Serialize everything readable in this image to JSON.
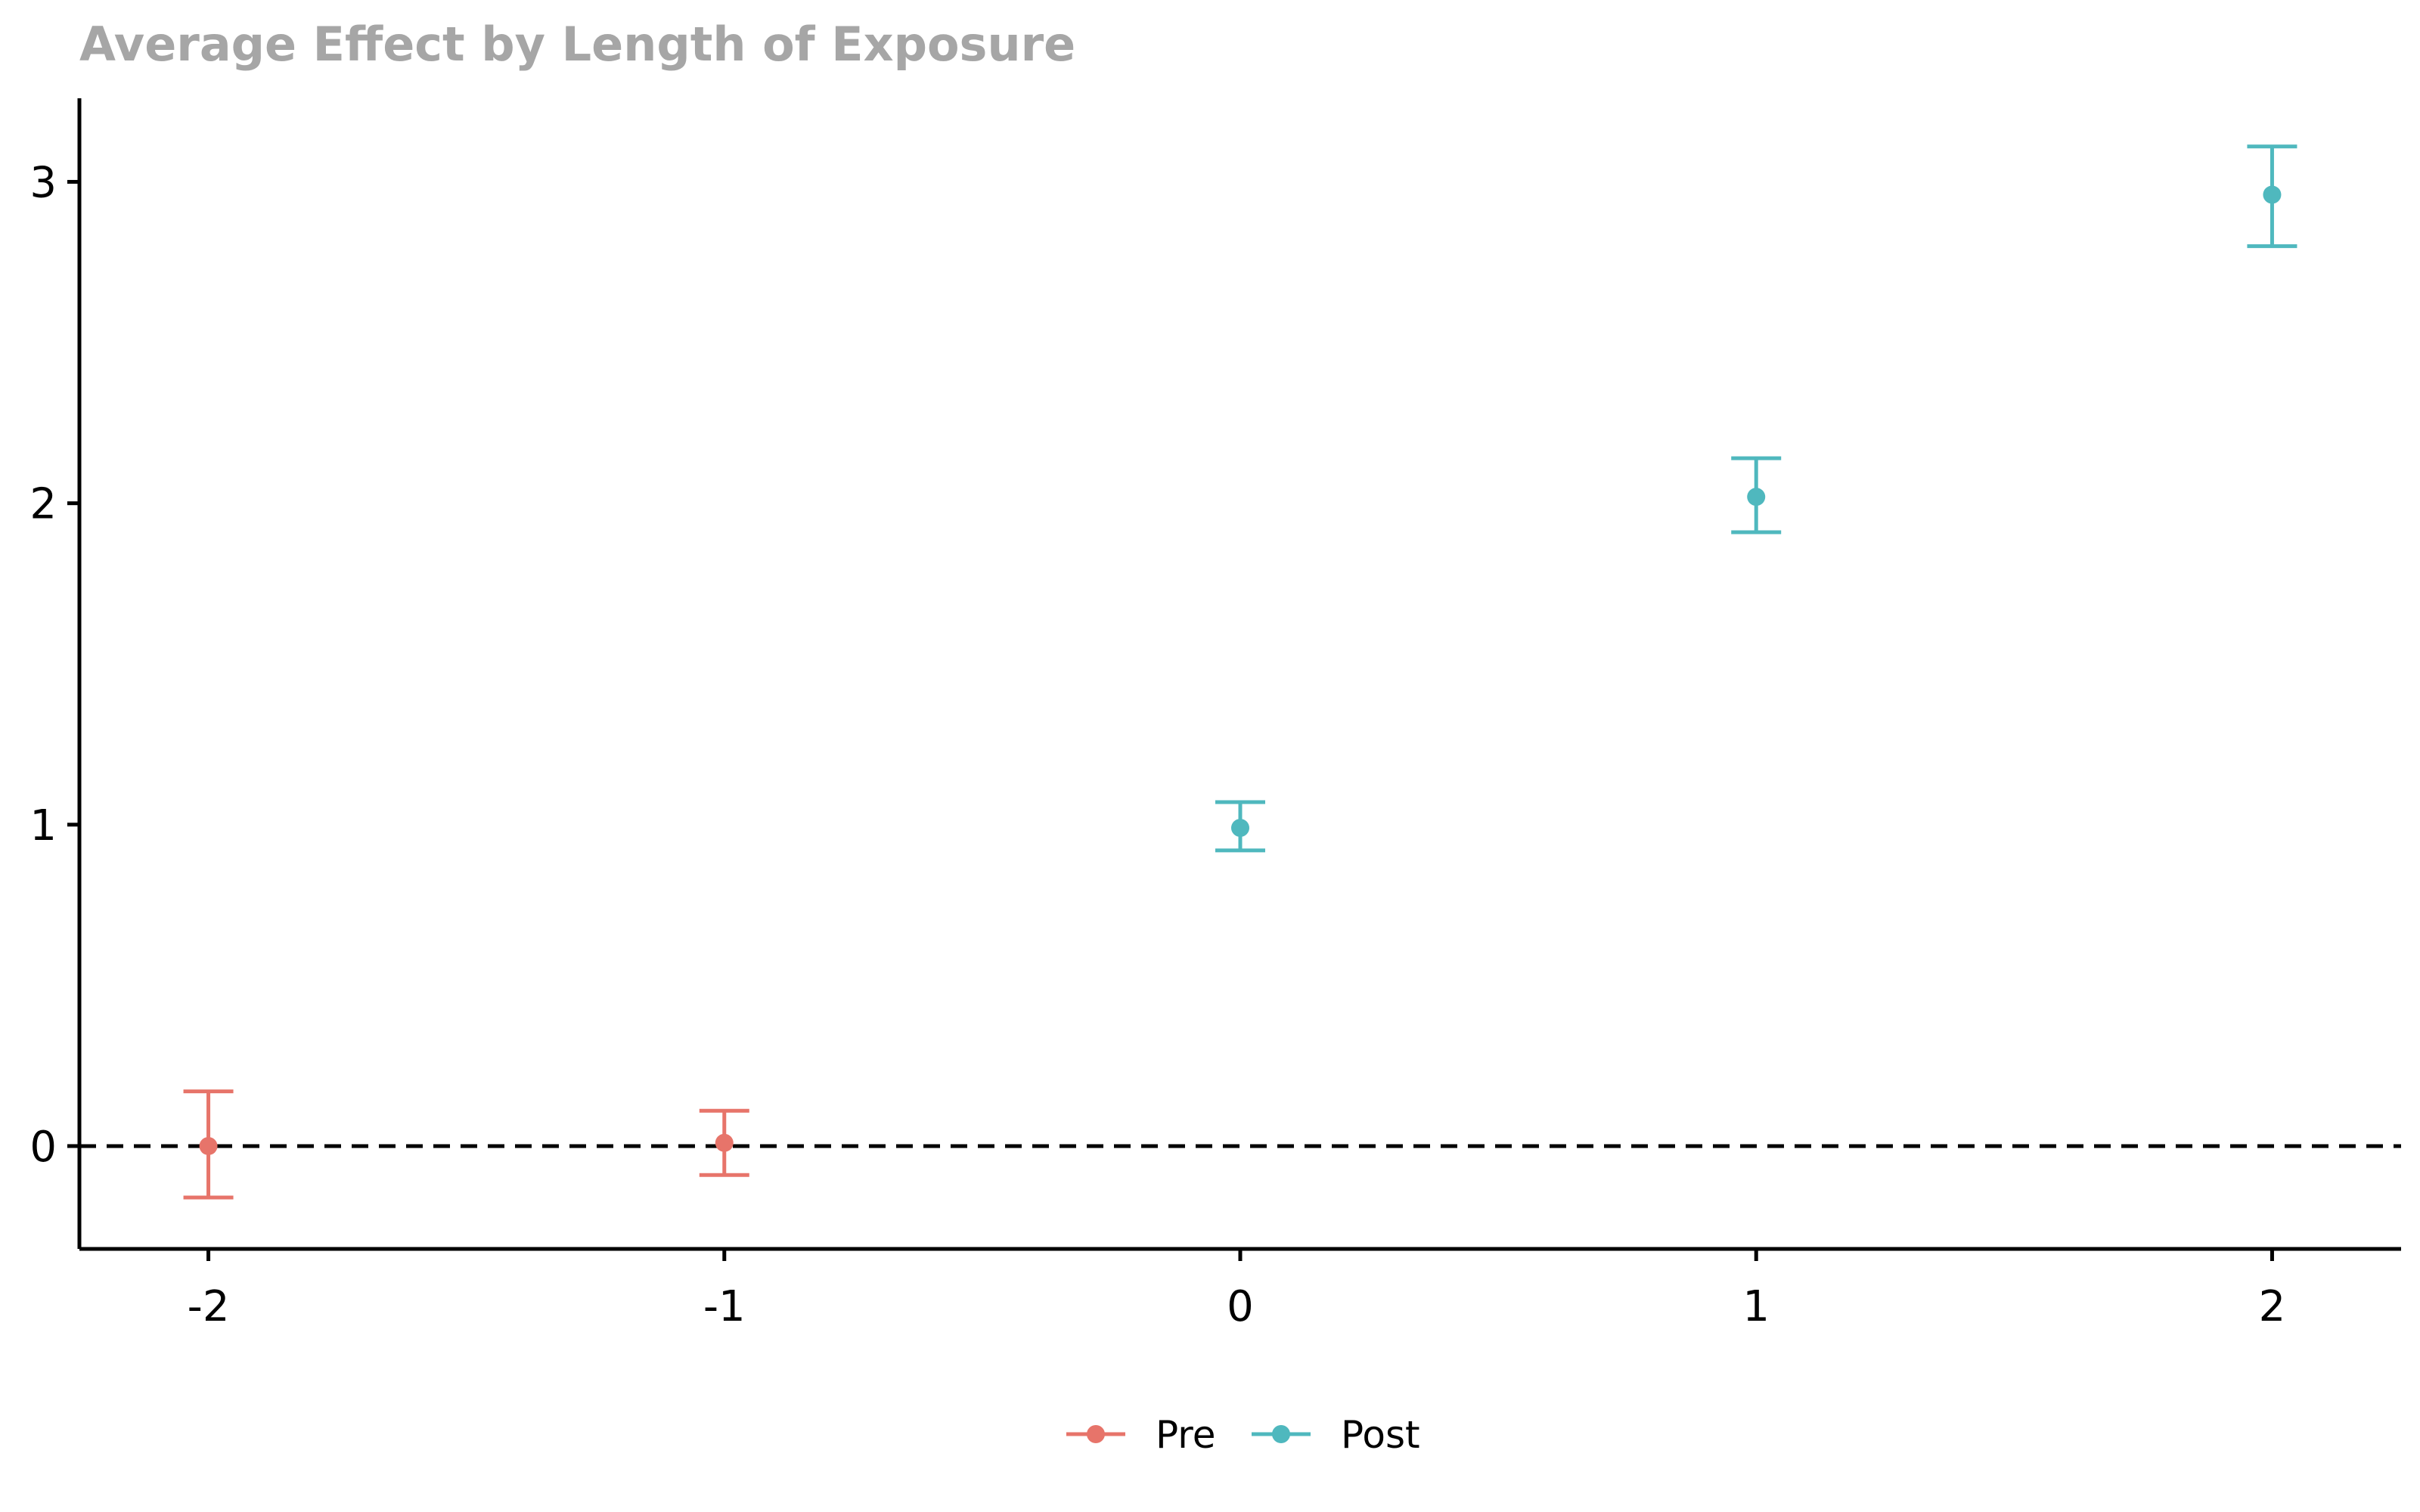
{
  "chart_data": {
    "type": "scatter",
    "title": "Average Effect by Length of Exposure",
    "xlabel": "",
    "ylabel": "",
    "xlim": [
      -2.25,
      2.25
    ],
    "ylim": [
      -0.32,
      3.26
    ],
    "x_ticks": [
      -2,
      -1,
      0,
      1,
      2
    ],
    "x_tick_labels": [
      "-2",
      "-1",
      "0",
      "1",
      "2"
    ],
    "y_ticks": [
      0,
      1,
      2,
      3
    ],
    "y_tick_labels": [
      "0",
      "1",
      "2",
      "3"
    ],
    "grid": false,
    "reference_line": {
      "y": 0,
      "style": "dashed",
      "color": "#000000"
    },
    "legend_position": "bottom",
    "series": [
      {
        "name": "Pre",
        "color": "#E7746A",
        "points": [
          {
            "x": -2,
            "y": 0.0,
            "ci_low": -0.16,
            "ci_high": 0.17
          },
          {
            "x": -1,
            "y": 0.01,
            "ci_low": -0.09,
            "ci_high": 0.11
          }
        ]
      },
      {
        "name": "Post",
        "color": "#4FB8BE",
        "points": [
          {
            "x": 0,
            "y": 0.99,
            "ci_low": 0.92,
            "ci_high": 1.07
          },
          {
            "x": 1,
            "y": 2.02,
            "ci_low": 1.91,
            "ci_high": 2.14
          },
          {
            "x": 2,
            "y": 2.96,
            "ci_low": 2.8,
            "ci_high": 3.11
          }
        ]
      }
    ],
    "title_color": "#A6A6A6",
    "axis_color": "#000000"
  }
}
